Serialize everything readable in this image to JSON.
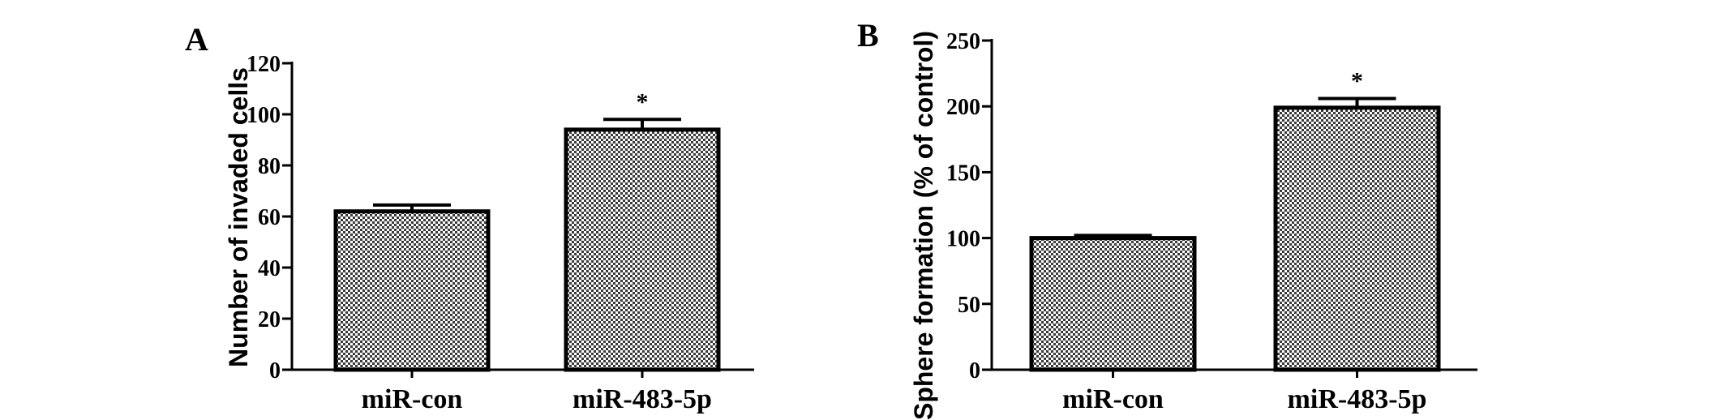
{
  "chart_data": [
    {
      "panel": "A",
      "type": "bar",
      "categories": [
        "miR-con",
        "miR-483-5p"
      ],
      "values": [
        62,
        94
      ],
      "errors": [
        2.5,
        4
      ],
      "annotations": [
        "",
        "*"
      ],
      "ylabel": "Number of invaded cells",
      "ylim": [
        0,
        120
      ],
      "yticks": [
        "0",
        "20",
        "40",
        "60",
        "80",
        "100",
        "120"
      ],
      "grid": false,
      "bar_fill": "checkered"
    },
    {
      "panel": "B",
      "type": "bar",
      "categories": [
        "miR-con",
        "miR-483-5p"
      ],
      "values": [
        100,
        199
      ],
      "errors": [
        2,
        7
      ],
      "annotations": [
        "",
        "*"
      ],
      "ylabel": "Sphere formation (% of control)",
      "ylim": [
        0,
        250
      ],
      "yticks": [
        "0",
        "50",
        "100",
        "150",
        "200",
        "250"
      ],
      "grid": false,
      "bar_fill": "checkered"
    }
  ],
  "colors": {
    "axis": "#000000",
    "bar_dark": "#333333",
    "bar_light": "#ffffff"
  }
}
